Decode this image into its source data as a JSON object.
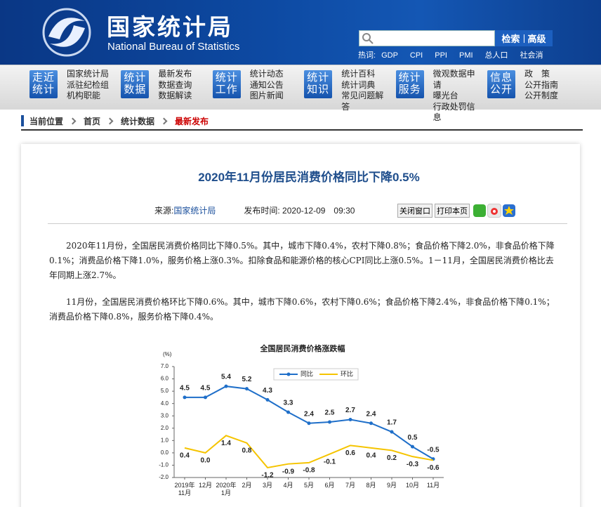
{
  "header": {
    "title": "国家统计局",
    "subtitle": "National Bureau of Statistics",
    "search_button": "检索",
    "advanced_button": "高级",
    "hot_label": "热词:",
    "hot_words": [
      "GDP",
      "CPI",
      "PPI",
      "PMI",
      "总人口",
      "社会消"
    ]
  },
  "nav": [
    {
      "label": "走近统计",
      "links": [
        "国家统计局",
        "派驻纪检组",
        "机构职能"
      ]
    },
    {
      "label": "统计数据",
      "links": [
        "最新发布",
        "数据查询",
        "数据解读"
      ]
    },
    {
      "label": "统计工作",
      "links": [
        "统计动态",
        "通知公告",
        "图片新闻"
      ]
    },
    {
      "label": "统计知识",
      "links": [
        "统计百科",
        "统计词典",
        "常见问题解答"
      ]
    },
    {
      "label": "统计服务",
      "links": [
        "微观数据申请",
        "曝光台",
        "行政处罚信息"
      ]
    },
    {
      "label": "信息公开",
      "links": [
        "政　策",
        "公开指南",
        "公开制度"
      ]
    }
  ],
  "breadcrumb": [
    "当前位置",
    "首页",
    "统计数据",
    "最新发布"
  ],
  "article": {
    "title": "2020年11月份居民消费价格同比下降0.5%",
    "source_label": "来源:",
    "source": "国家统计局",
    "date_label": "发布时间:",
    "date": "2020-12-09　09:30",
    "close": "关闭窗口",
    "print": "打印本页",
    "paragraphs": [
      "2020年11月份，全国居民消费价格同比下降0.5%。其中，城市下降0.4%，农村下降0.8%；食品价格下降2.0%，非食品价格下降0.1%；消费品价格下降1.0%，服务价格上涨0.3%。扣除食品和能源价格的核心CPI同比上涨0.5%。1－11月，全国居民消费价格比去年同期上涨2.7%。",
      "11月份，全国居民消费价格环比下降0.6%。其中，城市下降0.6%，农村下降0.6%；食品价格下降2.4%，非食品价格下降0.1%；消费品价格下降0.8%，服务价格下降0.4%。"
    ]
  },
  "chart_data": {
    "type": "line",
    "title": "全国居民消费价格涨跌幅",
    "y_label": "(%)",
    "categories": [
      "2019年11月",
      "12月",
      "2020年1月",
      "2月",
      "3月",
      "4月",
      "5月",
      "6月",
      "7月",
      "8月",
      "9月",
      "10月",
      "11月"
    ],
    "series": [
      {
        "name": "同比",
        "color": "#1f6fc9",
        "markers": true,
        "values": [
          4.5,
          4.5,
          5.4,
          5.2,
          4.3,
          3.3,
          2.4,
          2.5,
          2.7,
          2.4,
          1.7,
          0.5,
          -0.5
        ]
      },
      {
        "name": "环比",
        "color": "#f5c400",
        "markers": false,
        "values": [
          0.4,
          0,
          1.4,
          0.8,
          -1.2,
          -0.9,
          -0.8,
          -0.1,
          0.6,
          0.4,
          0.2,
          -0.3,
          -0.6
        ],
        "value_labels": [
          "0.4",
          "0.0",
          "1.4",
          "0.8",
          "-1.2",
          "-0.9",
          "-0.8",
          "-0.1",
          "0.6",
          "0.4",
          "0.2",
          "-0.3",
          "-0.6"
        ]
      }
    ],
    "ylim": [
      -2,
      7
    ],
    "yticks": [
      {
        "value": -2,
        "label": "-2.0"
      },
      {
        "value": -1,
        "label": "-1.0"
      },
      {
        "value": 0,
        "label": "0.0"
      },
      {
        "value": 1,
        "label": "1.0"
      },
      {
        "value": 2,
        "label": "2.0"
      },
      {
        "value": 3,
        "label": "3.0"
      },
      {
        "value": 4,
        "label": "4.0"
      },
      {
        "value": 5,
        "label": "5.0"
      },
      {
        "value": 6,
        "label": "6.0"
      },
      {
        "value": 7,
        "label": "7.0"
      }
    ]
  }
}
